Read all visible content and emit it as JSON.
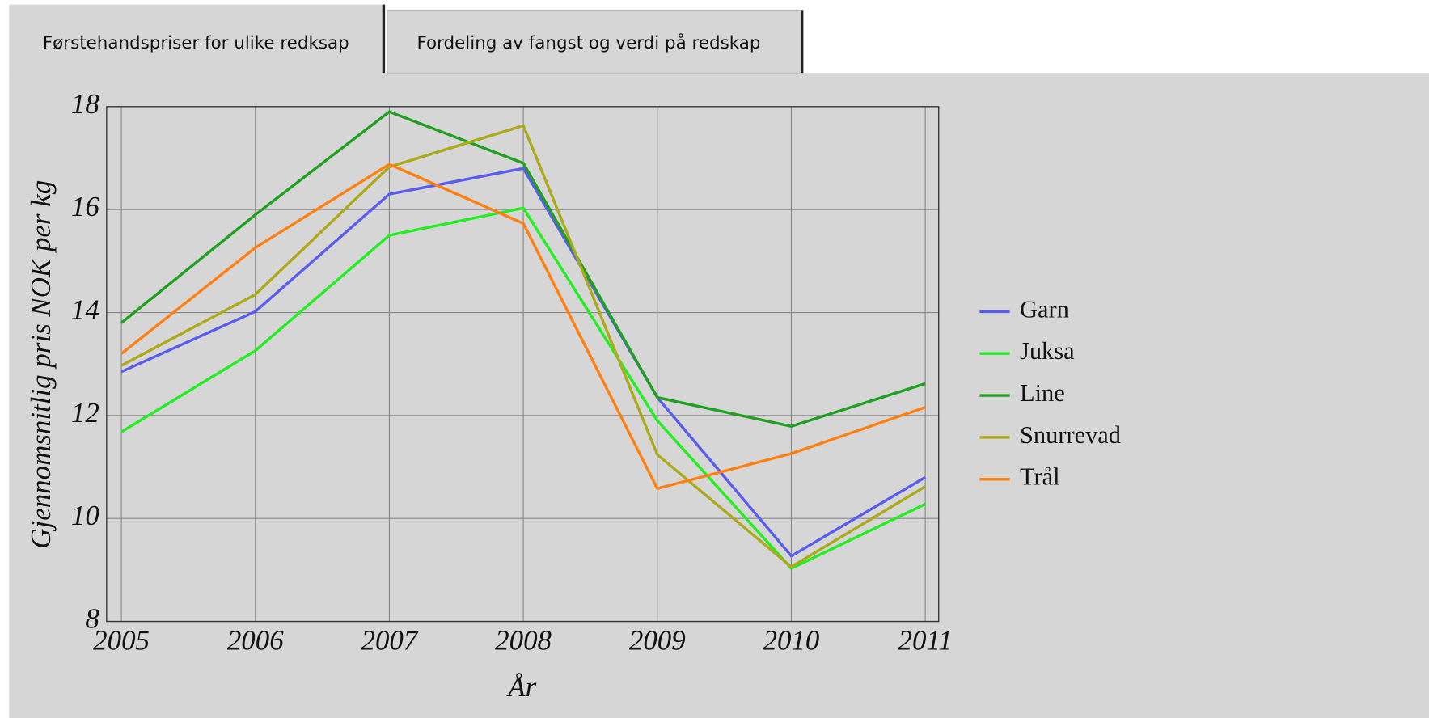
{
  "tabs": [
    "Førstehandspriser for ulike redksap",
    "Fordeling av fangst og verdi på redskap"
  ],
  "chart_data": {
    "type": "line",
    "xlabel": "År",
    "ylabel": "Gjennomsnitlig pris  NOK  per kg",
    "x": [
      2005,
      2006,
      2007,
      2008,
      2009,
      2010,
      2011
    ],
    "xlim": [
      2004.89,
      2011.1
    ],
    "xticks": [
      2005,
      2006,
      2007,
      2008,
      2009,
      2010,
      2011
    ],
    "ylim": [
      8,
      18
    ],
    "yticks": [
      8,
      10,
      12,
      14,
      16,
      18
    ],
    "grid": true,
    "legend": "right",
    "series": [
      {
        "name": "Garn",
        "color": "#5a5cf0",
        "values": [
          12.85,
          14.02,
          16.3,
          16.8,
          12.35,
          9.27,
          10.8
        ]
      },
      {
        "name": "Juksa",
        "color": "#22ee22",
        "values": [
          11.68,
          13.26,
          15.5,
          16.03,
          11.9,
          9.03,
          10.28
        ]
      },
      {
        "name": "Line",
        "color": "#1fa01f",
        "values": [
          13.8,
          15.9,
          17.9,
          16.9,
          12.35,
          11.79,
          12.62
        ]
      },
      {
        "name": "Snurrevad",
        "color": "#aaaa1a",
        "values": [
          12.97,
          14.35,
          16.83,
          17.63,
          11.24,
          9.06,
          10.62
        ]
      },
      {
        "name": "Trål",
        "color": "#ff8010",
        "values": [
          13.2,
          15.26,
          16.88,
          15.73,
          10.58,
          11.26,
          12.16
        ]
      }
    ]
  }
}
